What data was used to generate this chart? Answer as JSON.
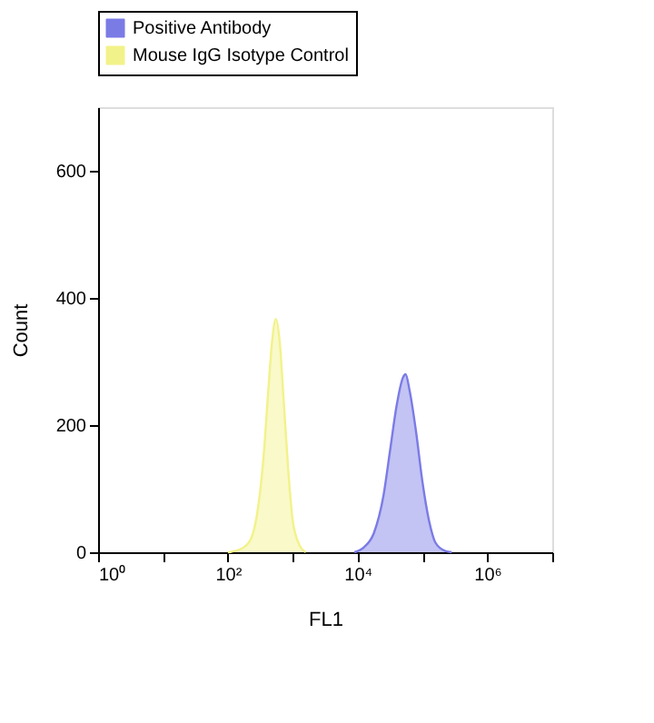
{
  "chart_data": {
    "type": "area",
    "xlabel": "FL1",
    "ylabel": "Count",
    "log": "x",
    "xlim": [
      1,
      10000000
    ],
    "ylim": [
      0,
      700
    ],
    "xticks": [
      {
        "value": 1,
        "label": "10⁰"
      },
      {
        "value": 10,
        "label": null
      },
      {
        "value": 100,
        "label": "10²"
      },
      {
        "value": 1000,
        "label": null
      },
      {
        "value": 10000,
        "label": "10⁴"
      },
      {
        "value": 100000,
        "label": null
      },
      {
        "value": 1000000,
        "label": "10⁶"
      },
      {
        "value": 10000000,
        "label": null
      }
    ],
    "yticks": [
      0,
      200,
      400,
      600
    ],
    "grid": false,
    "legend": "top",
    "series": [
      {
        "name": "Positive Antibody",
        "color": "#7b7be6",
        "x": [
          8913,
          12589,
          17783,
          25119,
          31623,
          39811,
          50119,
          54954,
          63096,
          79433,
          100000,
          125893,
          158489,
          223872,
          281838
        ],
        "values": [
          0,
          8,
          30,
          90,
          160,
          230,
          275,
          280,
          255,
          190,
          110,
          50,
          15,
          2,
          0
        ]
      },
      {
        "name": "Mouse IgG Isotype Control",
        "color": "#f2f28a",
        "x": [
          100,
          158,
          224,
          282,
          355,
          417,
          479,
          550,
          631,
          724,
          851,
          1000,
          1259,
          1585
        ],
        "values": [
          0,
          5,
          20,
          60,
          150,
          250,
          330,
          367,
          330,
          240,
          130,
          50,
          12,
          0
        ]
      }
    ]
  }
}
